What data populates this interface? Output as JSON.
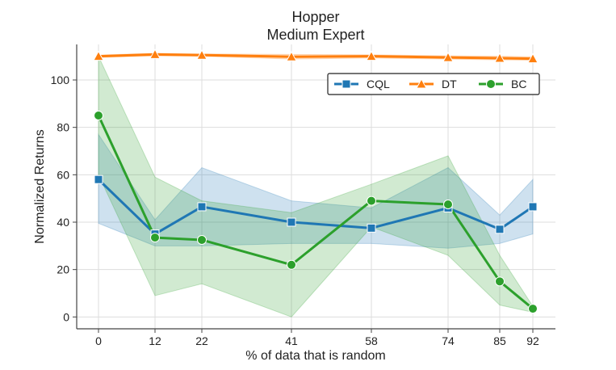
{
  "chart_data": {
    "type": "line",
    "title": [
      "Hopper",
      "Medium Expert"
    ],
    "xlabel": "% of data that is random",
    "ylabel": "Normalized Returns",
    "x_tick_labels": [
      "0",
      "12",
      "22",
      "41",
      "58",
      "74",
      "85",
      "92"
    ],
    "ylim": [
      -5,
      115
    ],
    "y_ticks": [
      0,
      20,
      40,
      60,
      80,
      100
    ],
    "grid": true,
    "legend": "top-right",
    "series": [
      {
        "name": "CQL",
        "color": "#1f77b4",
        "marker": "square",
        "values": [
          58,
          35,
          46.5,
          40,
          37.5,
          46,
          37,
          46.5
        ],
        "lower": [
          39.5,
          30,
          30,
          31,
          31,
          29,
          31,
          35
        ],
        "upper": [
          77,
          41,
          63,
          49,
          46,
          63,
          43,
          58
        ]
      },
      {
        "name": "DT",
        "color": "#ff7f0e",
        "marker": "triangle",
        "values": [
          110,
          110.8,
          110.5,
          109.8,
          110,
          109.5,
          109.2,
          109
        ],
        "lower": [
          109.5,
          110.2,
          110,
          108.8,
          109.3,
          108.8,
          108.5,
          108.3
        ],
        "upper": [
          110.5,
          111.3,
          111,
          110.8,
          110.6,
          110.2,
          110,
          109.8
        ]
      },
      {
        "name": "BC",
        "color": "#2ca02c",
        "marker": "circle",
        "values": [
          85,
          33.5,
          32.5,
          22,
          49,
          47.5,
          15,
          3.5
        ],
        "lower": [
          60,
          9,
          14,
          0,
          38,
          26,
          5,
          2
        ],
        "upper": [
          110,
          59,
          49,
          44,
          56,
          68,
          26,
          4.5
        ]
      }
    ]
  }
}
